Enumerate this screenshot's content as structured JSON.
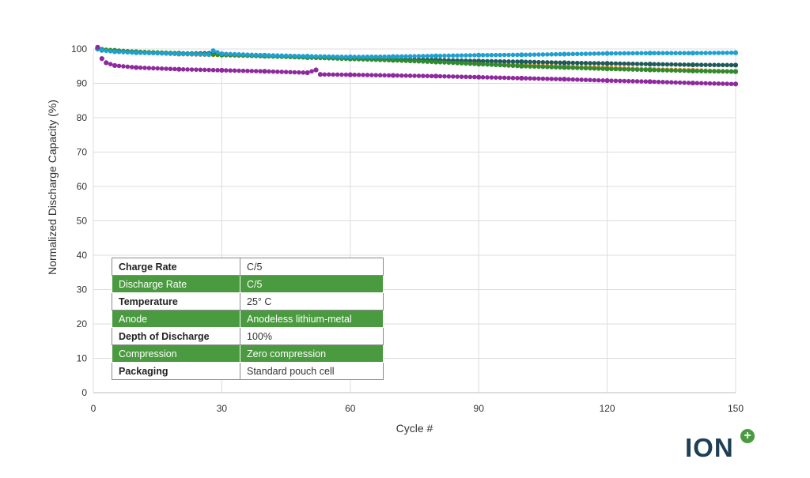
{
  "chart_data": {
    "type": "scatter",
    "title": "",
    "xlabel": "Cycle #",
    "ylabel": "Normalized Discharge Capacity (%)",
    "xlim": [
      0,
      150
    ],
    "ylim": [
      0,
      100
    ],
    "xticks": [
      0,
      30,
      60,
      90,
      120,
      150
    ],
    "yticks": [
      0,
      10,
      20,
      30,
      40,
      50,
      60,
      70,
      80,
      90,
      100
    ],
    "grid": true,
    "legend": "none",
    "series": [
      {
        "color": "#e08a2e",
        "x": [
          1,
          2,
          5,
          10,
          20,
          30,
          40,
          50,
          60,
          70,
          80,
          90,
          100,
          110,
          120,
          130,
          140,
          150
        ],
        "y": [
          100,
          99.8,
          99.4,
          99.0,
          98.5,
          98.2,
          97.9,
          97.6,
          97.2,
          96.8,
          96.3,
          95.8,
          95.3,
          94.9,
          94.5,
          94.1,
          93.8,
          93.5
        ]
      },
      {
        "color": "#1f5a5a",
        "x": [
          1,
          2,
          5,
          10,
          20,
          28,
          30,
          40,
          50,
          60,
          70,
          80,
          90,
          100,
          110,
          120,
          130,
          140,
          150
        ],
        "y": [
          100,
          99.7,
          99.5,
          99.1,
          98.7,
          98.8,
          98.3,
          98.0,
          97.6,
          97.3,
          97.0,
          96.8,
          96.5,
          96.3,
          96.0,
          95.8,
          95.6,
          95.4,
          95.3
        ]
      },
      {
        "color": "#2e8b2e",
        "x": [
          1,
          2,
          5,
          10,
          20,
          30,
          40,
          50,
          60,
          70,
          80,
          90,
          100,
          110,
          120,
          130,
          140,
          150
        ],
        "y": [
          100,
          99.9,
          99.6,
          99.2,
          98.8,
          98.3,
          97.9,
          97.5,
          97.1,
          96.7,
          96.2,
          95.6,
          95.0,
          94.6,
          94.2,
          93.9,
          93.6,
          93.4
        ]
      },
      {
        "color": "#1fa0d0",
        "x": [
          1,
          2,
          5,
          10,
          20,
          27,
          28,
          30,
          40,
          50,
          60,
          70,
          80,
          90,
          100,
          110,
          120,
          130,
          140,
          150
        ],
        "y": [
          100,
          99.6,
          99.2,
          98.9,
          98.6,
          98.4,
          99.5,
          98.6,
          98.2,
          97.9,
          97.7,
          97.8,
          98.0,
          98.2,
          98.3,
          98.5,
          98.7,
          98.8,
          98.8,
          98.9
        ]
      },
      {
        "color": "#8e2a9e",
        "x": [
          1,
          2,
          3,
          5,
          10,
          20,
          30,
          40,
          50,
          52,
          53,
          60,
          70,
          80,
          90,
          100,
          110,
          120,
          130,
          140,
          150
        ],
        "y": [
          100.5,
          97.2,
          96.0,
          95.2,
          94.6,
          94.1,
          93.8,
          93.5,
          93.1,
          93.9,
          92.6,
          92.5,
          92.3,
          92.1,
          91.8,
          91.5,
          91.2,
          90.8,
          90.5,
          90.1,
          89.8
        ]
      }
    ]
  },
  "conditions_table": {
    "rows": [
      {
        "key": "Charge Rate",
        "value": "C/5"
      },
      {
        "key": "Discharge Rate",
        "value": "C/5"
      },
      {
        "key": "Temperature",
        "value": "25° C"
      },
      {
        "key": "Anode",
        "value": "Anodeless lithium-metal"
      },
      {
        "key": "Depth of Discharge",
        "value": "100%"
      },
      {
        "key": "Compression",
        "value": "Zero compression"
      },
      {
        "key": "Packaging",
        "value": "Standard pouch cell"
      }
    ]
  },
  "logo": {
    "text": "ION",
    "plus": "+",
    "colors": {
      "text": "#1f3f57",
      "plus": "#4a9a3f"
    }
  }
}
